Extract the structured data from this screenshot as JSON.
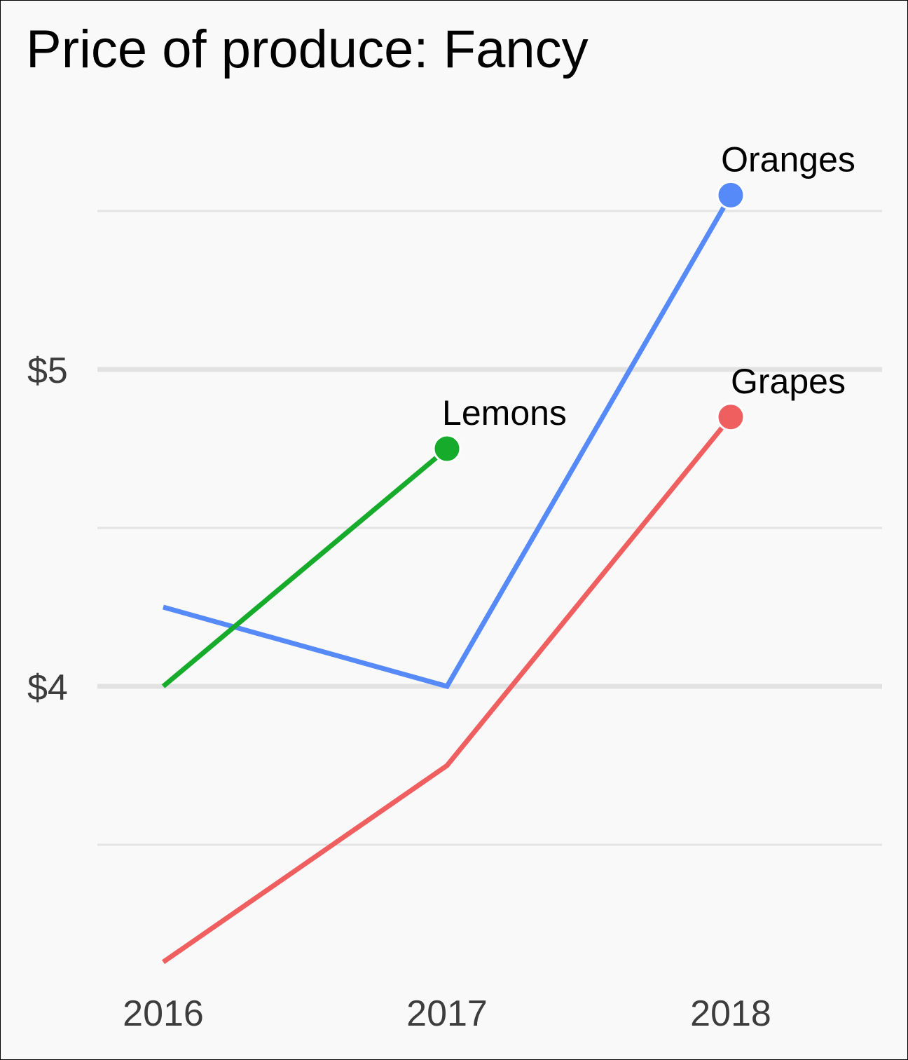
{
  "chart_data": {
    "type": "line",
    "title": "Price of produce: Fancy",
    "xlabel": "",
    "ylabel": "",
    "x": [
      "2016",
      "2017",
      "2018"
    ],
    "ylim": [
      3.0,
      5.6
    ],
    "y_ticks": [
      {
        "value": 4,
        "label": "$4"
      },
      {
        "value": 5,
        "label": "$5"
      }
    ],
    "minor_gridlines": [
      3.5,
      4.5,
      5.5
    ],
    "grid": true,
    "legend": "direct labels at series ends",
    "series": [
      {
        "name": "Grapes",
        "color": "#f05f5f",
        "values": [
          3.13,
          3.75,
          4.85
        ]
      },
      {
        "name": "Oranges",
        "color": "#558af8",
        "values": [
          4.25,
          4.0,
          5.55
        ]
      },
      {
        "name": "Lemons",
        "color": "#16ab2b",
        "values": [
          4.0,
          4.75,
          null
        ]
      }
    ]
  }
}
